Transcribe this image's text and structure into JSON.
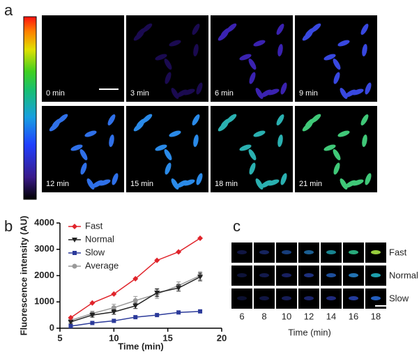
{
  "panels": {
    "a": {
      "label": "a",
      "frames": [
        "0 min",
        "3 min",
        "6 min",
        "9 min",
        "12 min",
        "15 min",
        "18 min",
        "21 min"
      ]
    },
    "b": {
      "label": "b"
    },
    "c": {
      "label": "c",
      "rows": [
        "Fast",
        "Normal",
        "Slow"
      ],
      "times": [
        6,
        8,
        10,
        12,
        14,
        16,
        18
      ],
      "xlabel": "Time (min)"
    }
  },
  "chart_data": {
    "type": "line",
    "xlabel": "Time (min)",
    "ylabel": "Fluorescence intensity (AU)",
    "x": [
      6,
      8,
      10,
      12,
      14,
      16,
      18
    ],
    "xlim": [
      5,
      20
    ],
    "xticks": [
      5,
      10,
      15,
      20
    ],
    "ylim": [
      0,
      4000
    ],
    "yticks": [
      0,
      1000,
      2000,
      3000,
      4000
    ],
    "legend": "upper-left",
    "series": [
      {
        "name": "Fast",
        "color": "#e0242b",
        "marker": "diamond",
        "values": [
          400,
          960,
          1300,
          1880,
          2580,
          2900,
          3420
        ]
      },
      {
        "name": "Normal",
        "color": "#222222",
        "marker": "triangle-down",
        "values": [
          240,
          500,
          620,
          850,
          1350,
          1530,
          1950
        ],
        "errors": [
          60,
          80,
          90,
          100,
          150,
          120,
          150
        ]
      },
      {
        "name": "Slow",
        "color": "#2b3a9a",
        "marker": "square",
        "values": [
          80,
          200,
          280,
          420,
          500,
          600,
          640
        ]
      },
      {
        "name": "Average",
        "color": "#999999",
        "marker": "circle",
        "values": [
          300,
          560,
          780,
          1050,
          1300,
          1620,
          2000
        ],
        "errors": [
          70,
          90,
          130,
          160,
          170,
          140,
          150
        ]
      }
    ]
  }
}
